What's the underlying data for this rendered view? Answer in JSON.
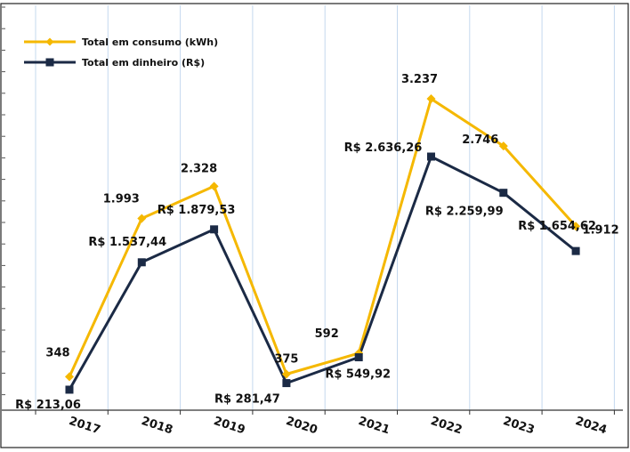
{
  "chart_data": {
    "type": "line",
    "categories": [
      "2017",
      "2018",
      "2019",
      "2020",
      "2021",
      "2022",
      "2023",
      "2024"
    ],
    "series": [
      {
        "name": "Total em consumo (kWh)",
        "color": "#f5b800",
        "marker": "diamond",
        "values": [
          348,
          1993,
          2328,
          375,
          592,
          3237,
          2746,
          1912
        ],
        "labels": [
          "348",
          "1.993",
          "2.328",
          "375",
          "592",
          "3.237",
          "2.746",
          "1.912"
        ]
      },
      {
        "name": "Total em dinheiro (R$)",
        "color": "#1b2a45",
        "marker": "square",
        "values": [
          213.06,
          1537.44,
          1879.53,
          281.47,
          549.92,
          2636.26,
          2259.99,
          1654.62
        ],
        "labels": [
          "R$ 213,06",
          "R$ 1.537,44",
          "R$ 1.879,53",
          "R$ 281,47",
          "R$ 549,92",
          "R$ 2.636,26",
          "R$ 2.259,99",
          "R$ 1.654,62"
        ]
      }
    ],
    "ylim": [
      0,
      3700
    ],
    "grid": "vertical",
    "legend": "top-left",
    "title": "",
    "xlabel": "",
    "ylabel": ""
  }
}
